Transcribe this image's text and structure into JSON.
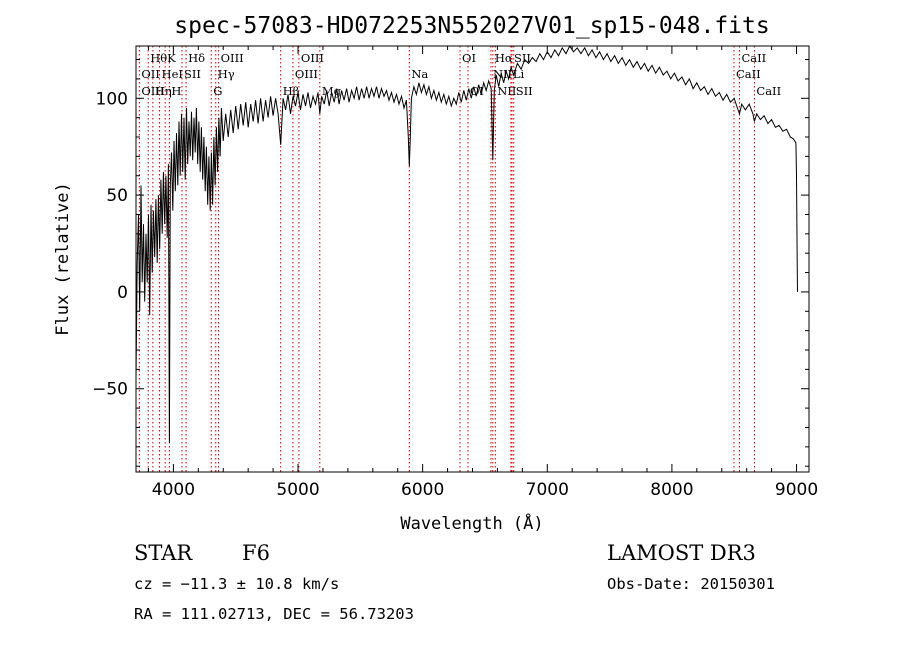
{
  "chart_data": {
    "type": "line",
    "title": "spec-57083-HD072253N552027V01_sp15-048.fits",
    "xlabel": "Wavelength (Å)",
    "ylabel": "Flux (relative)",
    "xlim": [
      3700,
      9100
    ],
    "ylim": [
      -93,
      127
    ],
    "xticks": [
      4000,
      5000,
      6000,
      7000,
      8000,
      9000
    ],
    "yticks": [
      -50,
      0,
      50,
      100
    ],
    "xtick_labels": [
      "4000",
      "5000",
      "6000",
      "7000",
      "8000",
      "9000"
    ],
    "ytick_labels": [
      "−50",
      "0",
      "50",
      "100"
    ],
    "series": [
      {
        "name": "flux",
        "points": [
          [
            3700,
            -45
          ],
          [
            3710,
            15
          ],
          [
            3720,
            40
          ],
          [
            3730,
            -10
          ],
          [
            3740,
            55
          ],
          [
            3750,
            5
          ],
          [
            3760,
            35
          ],
          [
            3770,
            -5
          ],
          [
            3780,
            30
          ],
          [
            3790,
            5
          ],
          [
            3800,
            40
          ],
          [
            3810,
            -12
          ],
          [
            3820,
            45
          ],
          [
            3830,
            10
          ],
          [
            3840,
            42
          ],
          [
            3850,
            18
          ],
          [
            3860,
            48
          ],
          [
            3870,
            15
          ],
          [
            3880,
            50
          ],
          [
            3890,
            22
          ],
          [
            3900,
            58
          ],
          [
            3910,
            30
          ],
          [
            3920,
            62
          ],
          [
            3930,
            35
          ],
          [
            3940,
            60
          ],
          [
            3950,
            28
          ],
          [
            3960,
            66
          ],
          [
            3968,
            -78
          ],
          [
            3975,
            55
          ],
          [
            3985,
            72
          ],
          [
            3995,
            42
          ],
          [
            4005,
            78
          ],
          [
            4015,
            52
          ],
          [
            4025,
            82
          ],
          [
            4035,
            55
          ],
          [
            4045,
            88
          ],
          [
            4055,
            60
          ],
          [
            4065,
            92
          ],
          [
            4075,
            62
          ],
          [
            4085,
            90
          ],
          [
            4095,
            58
          ],
          [
            4105,
            95
          ],
          [
            4115,
            66
          ],
          [
            4125,
            88
          ],
          [
            4135,
            70
          ],
          [
            4145,
            93
          ],
          [
            4155,
            68
          ],
          [
            4165,
            90
          ],
          [
            4175,
            72
          ],
          [
            4185,
            95
          ],
          [
            4195,
            66
          ],
          [
            4205,
            88
          ],
          [
            4215,
            62
          ],
          [
            4225,
            85
          ],
          [
            4235,
            58
          ],
          [
            4245,
            80
          ],
          [
            4255,
            52
          ],
          [
            4265,
            75
          ],
          [
            4275,
            45
          ],
          [
            4285,
            70
          ],
          [
            4295,
            42
          ],
          [
            4305,
            72
          ],
          [
            4315,
            45
          ],
          [
            4325,
            80
          ],
          [
            4335,
            55
          ],
          [
            4345,
            85
          ],
          [
            4355,
            62
          ],
          [
            4365,
            90
          ],
          [
            4375,
            70
          ],
          [
            4385,
            95
          ],
          [
            4400,
            78
          ],
          [
            4420,
            92
          ],
          [
            4440,
            80
          ],
          [
            4460,
            94
          ],
          [
            4480,
            82
          ],
          [
            4500,
            96
          ],
          [
            4520,
            84
          ],
          [
            4540,
            97
          ],
          [
            4560,
            86
          ],
          [
            4580,
            98
          ],
          [
            4600,
            85
          ],
          [
            4620,
            97
          ],
          [
            4640,
            88
          ],
          [
            4660,
            99
          ],
          [
            4680,
            87
          ],
          [
            4700,
            100
          ],
          [
            4720,
            88
          ],
          [
            4740,
            99
          ],
          [
            4760,
            90
          ],
          [
            4780,
            101
          ],
          [
            4800,
            91
          ],
          [
            4820,
            100
          ],
          [
            4840,
            92
          ],
          [
            4861,
            76
          ],
          [
            4880,
            100
          ],
          [
            4900,
            94
          ],
          [
            4920,
            102
          ],
          [
            4940,
            92
          ],
          [
            4960,
            101
          ],
          [
            4980,
            96
          ],
          [
            5000,
            103
          ],
          [
            5020,
            94
          ],
          [
            5040,
            102
          ],
          [
            5060,
            96
          ],
          [
            5080,
            103
          ],
          [
            5100,
            95
          ],
          [
            5120,
            101
          ],
          [
            5140,
            97
          ],
          [
            5160,
            103
          ],
          [
            5175,
            92
          ],
          [
            5190,
            101
          ],
          [
            5210,
            97
          ],
          [
            5230,
            104
          ],
          [
            5250,
            96
          ],
          [
            5270,
            103
          ],
          [
            5290,
            98
          ],
          [
            5310,
            105
          ],
          [
            5330,
            97
          ],
          [
            5350,
            104
          ],
          [
            5370,
            99
          ],
          [
            5390,
            105
          ],
          [
            5410,
            98
          ],
          [
            5430,
            104
          ],
          [
            5450,
            100
          ],
          [
            5470,
            106
          ],
          [
            5490,
            99
          ],
          [
            5510,
            105
          ],
          [
            5530,
            100
          ],
          [
            5550,
            106
          ],
          [
            5570,
            100
          ],
          [
            5590,
            105
          ],
          [
            5610,
            101
          ],
          [
            5630,
            106
          ],
          [
            5650,
            100
          ],
          [
            5670,
            105
          ],
          [
            5690,
            101
          ],
          [
            5710,
            104
          ],
          [
            5730,
            99
          ],
          [
            5750,
            103
          ],
          [
            5770,
            98
          ],
          [
            5790,
            102
          ],
          [
            5810,
            97
          ],
          [
            5830,
            101
          ],
          [
            5850,
            95
          ],
          [
            5870,
            99
          ],
          [
            5885,
            80
          ],
          [
            5893,
            65
          ],
          [
            5900,
            78
          ],
          [
            5910,
            100
          ],
          [
            5930,
            106
          ],
          [
            5950,
            102
          ],
          [
            5970,
            108
          ],
          [
            5990,
            103
          ],
          [
            6010,
            107
          ],
          [
            6030,
            102
          ],
          [
            6050,
            106
          ],
          [
            6070,
            100
          ],
          [
            6090,
            104
          ],
          [
            6110,
            99
          ],
          [
            6130,
            103
          ],
          [
            6150,
            98
          ],
          [
            6170,
            102
          ],
          [
            6190,
            97
          ],
          [
            6210,
            101
          ],
          [
            6230,
            96
          ],
          [
            6250,
            100
          ],
          [
            6270,
            97
          ],
          [
            6290,
            103
          ],
          [
            6310,
            98
          ],
          [
            6330,
            104
          ],
          [
            6350,
            99
          ],
          [
            6370,
            105
          ],
          [
            6390,
            100
          ],
          [
            6410,
            106
          ],
          [
            6430,
            101
          ],
          [
            6450,
            107
          ],
          [
            6470,
            102
          ],
          [
            6490,
            108
          ],
          [
            6510,
            104
          ],
          [
            6530,
            109
          ],
          [
            6550,
            105
          ],
          [
            6563,
            68
          ],
          [
            6575,
            104
          ],
          [
            6590,
            112
          ],
          [
            6610,
            106
          ],
          [
            6630,
            113
          ],
          [
            6650,
            108
          ],
          [
            6670,
            114
          ],
          [
            6690,
            110
          ],
          [
            6710,
            116
          ],
          [
            6730,
            112
          ],
          [
            6760,
            118
          ],
          [
            6790,
            115
          ],
          [
            6820,
            120
          ],
          [
            6850,
            118
          ],
          [
            6880,
            121
          ],
          [
            6910,
            119
          ],
          [
            6940,
            123
          ],
          [
            6970,
            120
          ],
          [
            7000,
            124
          ],
          [
            7030,
            121
          ],
          [
            7060,
            125
          ],
          [
            7090,
            122
          ],
          [
            7120,
            126
          ],
          [
            7150,
            123
          ],
          [
            7180,
            127
          ],
          [
            7210,
            124
          ],
          [
            7240,
            126
          ],
          [
            7270,
            123
          ],
          [
            7300,
            126
          ],
          [
            7330,
            122
          ],
          [
            7360,
            125
          ],
          [
            7390,
            121
          ],
          [
            7420,
            124
          ],
          [
            7450,
            120
          ],
          [
            7480,
            123
          ],
          [
            7510,
            119
          ],
          [
            7540,
            122
          ],
          [
            7570,
            118
          ],
          [
            7600,
            121
          ],
          [
            7630,
            117
          ],
          [
            7660,
            120
          ],
          [
            7690,
            116
          ],
          [
            7720,
            119
          ],
          [
            7750,
            115
          ],
          [
            7780,
            118
          ],
          [
            7810,
            114
          ],
          [
            7840,
            117
          ],
          [
            7870,
            113
          ],
          [
            7900,
            116
          ],
          [
            7930,
            112
          ],
          [
            7960,
            114
          ],
          [
            7990,
            110
          ],
          [
            8020,
            113
          ],
          [
            8050,
            109
          ],
          [
            8080,
            111
          ],
          [
            8110,
            107
          ],
          [
            8140,
            110
          ],
          [
            8170,
            105
          ],
          [
            8200,
            108
          ],
          [
            8230,
            104
          ],
          [
            8260,
            106
          ],
          [
            8290,
            102
          ],
          [
            8320,
            105
          ],
          [
            8350,
            101
          ],
          [
            8380,
            103
          ],
          [
            8410,
            99
          ],
          [
            8440,
            102
          ],
          [
            8470,
            98
          ],
          [
            8500,
            100
          ],
          [
            8520,
            96
          ],
          [
            8542,
            92
          ],
          [
            8560,
            97
          ],
          [
            8590,
            94
          ],
          [
            8620,
            97
          ],
          [
            8650,
            92
          ],
          [
            8662,
            88
          ],
          [
            8680,
            92
          ],
          [
            8710,
            89
          ],
          [
            8740,
            91
          ],
          [
            8770,
            87
          ],
          [
            8800,
            89
          ],
          [
            8830,
            85
          ],
          [
            8860,
            86
          ],
          [
            8890,
            83
          ],
          [
            8920,
            84
          ],
          [
            8950,
            80
          ],
          [
            8975,
            79
          ],
          [
            8995,
            77
          ],
          [
            9000,
            60
          ],
          [
            9005,
            15
          ],
          [
            9008,
            0
          ]
        ]
      }
    ],
    "spectral_lines": [
      {
        "label": "Hθ",
        "wavelength": 3798,
        "row": 1
      },
      {
        "label": "OII",
        "wavelength": 3727,
        "row": 2
      },
      {
        "label": "OIII",
        "wavelength": 3727,
        "row": 3
      },
      {
        "label": "K",
        "wavelength": 3934,
        "row": 1
      },
      {
        "label": "HeI",
        "wavelength": 3889,
        "row": 2
      },
      {
        "label": "Hη",
        "wavelength": 3835,
        "row": 3
      },
      {
        "label": "Hδ",
        "wavelength": 4102,
        "row": 1
      },
      {
        "label": "SII",
        "wavelength": 4069,
        "row": 2
      },
      {
        "label": "H",
        "wavelength": 3968,
        "row": 3
      },
      {
        "label": "OIII",
        "wavelength": 4363,
        "row": 1
      },
      {
        "label": "Hγ",
        "wavelength": 4340,
        "row": 2
      },
      {
        "label": "G",
        "wavelength": 4304,
        "row": 3
      },
      {
        "label": "OIII",
        "wavelength": 5007,
        "row": 1
      },
      {
        "label": "OIII",
        "wavelength": 4959,
        "row": 2
      },
      {
        "label": "Hβ",
        "wavelength": 4861,
        "row": 3
      },
      {
        "label": "Mg",
        "wavelength": 5175,
        "row": 3
      },
      {
        "label": "Na",
        "wavelength": 5893,
        "row": 2
      },
      {
        "label": "OI",
        "wavelength": 6300,
        "row": 1
      },
      {
        "label": "OI",
        "wavelength": 6364,
        "row": 3
      },
      {
        "label": "Hα",
        "wavelength": 6563,
        "row": 1
      },
      {
        "label": "SII",
        "wavelength": 6717,
        "row": 1
      },
      {
        "label": "NII",
        "wavelength": 6548,
        "row": 2
      },
      {
        "label": "Li",
        "wavelength": 6708,
        "row": 2
      },
      {
        "label": "NII",
        "wavelength": 6583,
        "row": 3
      },
      {
        "label": "SII",
        "wavelength": 6731,
        "row": 3
      },
      {
        "label": "CaII",
        "wavelength": 8542,
        "row": 1
      },
      {
        "label": "CaII",
        "wavelength": 8498,
        "row": 2
      },
      {
        "label": "CaII",
        "wavelength": 8662,
        "row": 3
      }
    ],
    "marker_lines": [
      3727,
      3798,
      3835,
      3889,
      3934,
      3968,
      4069,
      4102,
      4304,
      4340,
      4363,
      4861,
      4959,
      5007,
      5175,
      5893,
      6300,
      6364,
      6548,
      6563,
      6583,
      6708,
      6717,
      6731,
      8498,
      8542,
      8662
    ],
    "grid": false,
    "legend": "none"
  },
  "info": {
    "object_class": "STAR",
    "subclass": "F6",
    "survey": "LAMOST DR3",
    "cz": "cz = −11.3 ± 10.8 km/s",
    "obs_date": "Obs-Date: 20150301",
    "coords": "RA = 111.02713, DEC =  56.73203"
  },
  "colors": {
    "spectrum": "#000000",
    "line_markers": "#cc0000",
    "axes": "#000000"
  }
}
